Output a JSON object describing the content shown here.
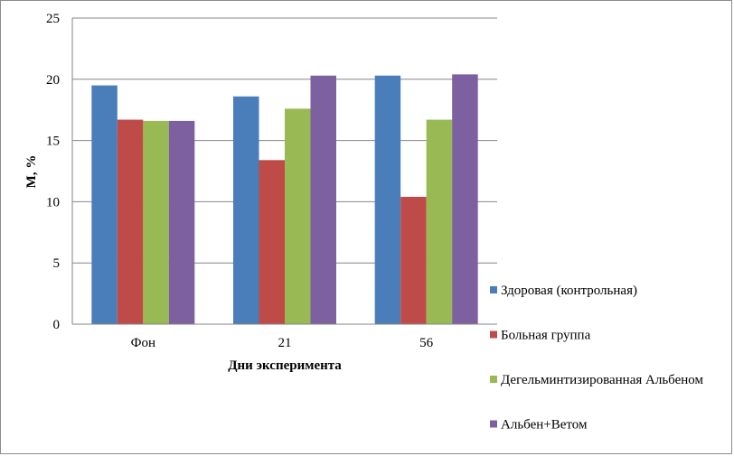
{
  "chart_data": {
    "type": "bar",
    "categories": [
      "Фон",
      "21",
      "56"
    ],
    "series": [
      {
        "name": "Здоровая (контрольная)",
        "color": "#4a7ebb",
        "values": [
          19.5,
          18.6,
          20.3
        ]
      },
      {
        "name": "Больная группа",
        "color": "#be4b48",
        "values": [
          16.7,
          13.4,
          10.4
        ]
      },
      {
        "name": "Дегельминтизированная Альбеном",
        "color": "#98b954",
        "values": [
          16.6,
          17.6,
          16.7
        ]
      },
      {
        "name": "Альбен+Ветом",
        "color": "#7d60a0",
        "values": [
          16.6,
          20.3,
          20.4
        ]
      }
    ],
    "xlabel": "Дни эксперимента",
    "ylabel": "М, %",
    "ylim": [
      0,
      25
    ],
    "yticks": [
      0,
      5,
      10,
      15,
      20,
      25
    ],
    "grid": true,
    "legend_position": "right"
  }
}
